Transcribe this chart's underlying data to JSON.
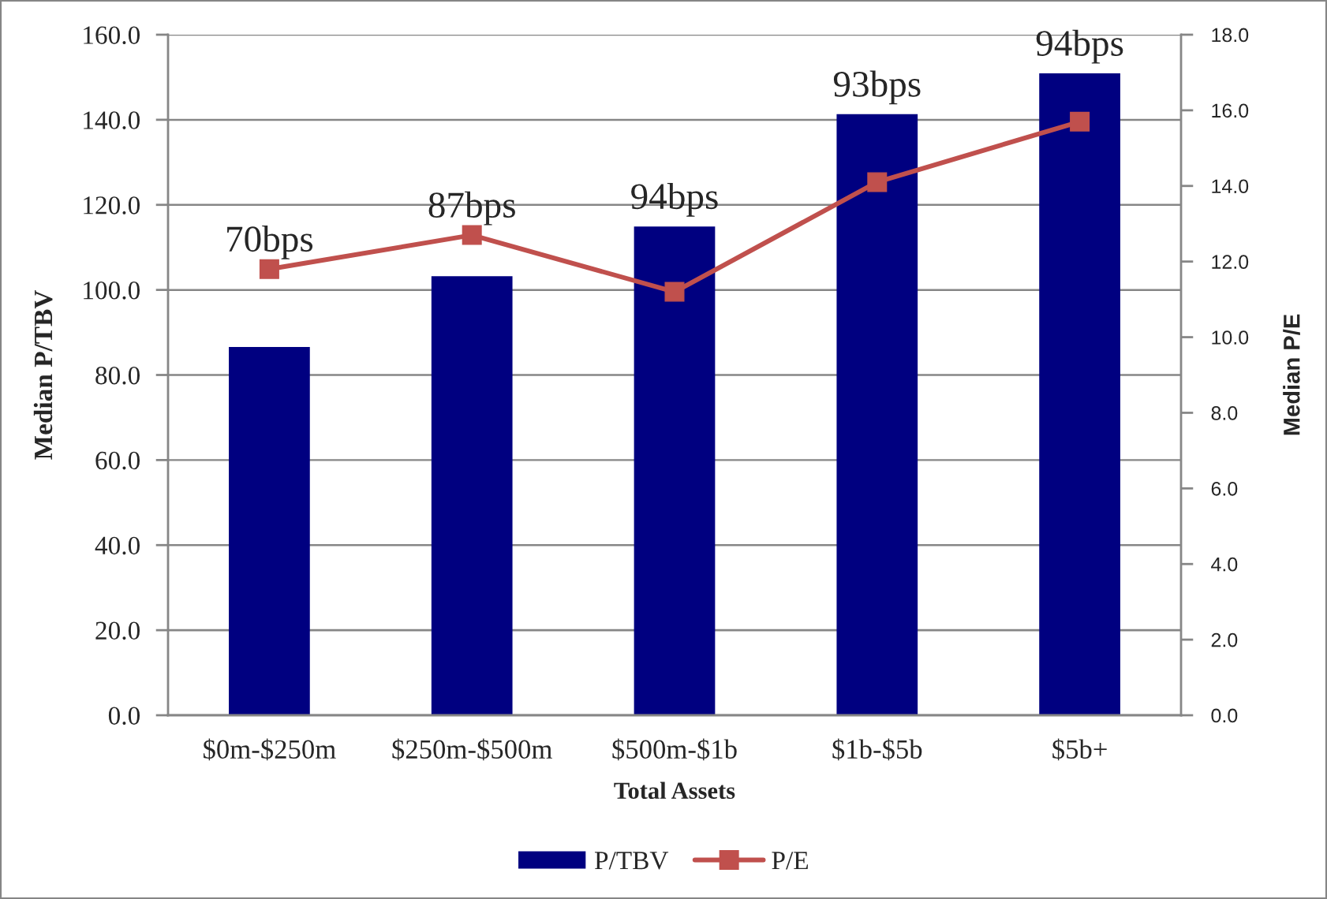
{
  "chart_data": {
    "type": "bar",
    "xlabel": "Total Assets",
    "ylabel": "Median P/TBV",
    "y2label": "Median P/E",
    "categories": [
      "$0m-$250m",
      "$250m-$500m",
      "$500m-$1b",
      "$1b-$5b",
      "$5b+"
    ],
    "series": [
      {
        "name": "P/TBV",
        "color": "#000080",
        "values": [
          86.6,
          103.2,
          114.9,
          141.3,
          150.9
        ]
      },
      {
        "name": "P/E",
        "type": "line",
        "axis": "y2",
        "color": "#c0504d",
        "values": [
          11.8,
          12.7,
          11.2,
          14.1,
          15.7
        ]
      }
    ],
    "ylim": [
      0,
      160
    ],
    "yticks": [
      {
        "value": 0,
        "label": "0.0"
      },
      {
        "value": 20,
        "label": "20.0"
      },
      {
        "value": 40,
        "label": "40.0"
      },
      {
        "value": 60,
        "label": "60.0"
      },
      {
        "value": 80,
        "label": "80.0"
      },
      {
        "value": 100,
        "label": "100.0"
      },
      {
        "value": 120,
        "label": "120.0"
      },
      {
        "value": 140,
        "label": "140.0"
      },
      {
        "value": 160,
        "label": "160.0"
      }
    ],
    "y2lim": [
      0,
      18
    ],
    "y2ticks": [
      {
        "value": 0,
        "label": "0.0"
      },
      {
        "value": 2,
        "label": "2.0"
      },
      {
        "value": 4,
        "label": "4.0"
      },
      {
        "value": 6,
        "label": "6.0"
      },
      {
        "value": 8,
        "label": "8.0"
      },
      {
        "value": 10,
        "label": "10.0"
      },
      {
        "value": 12,
        "label": "12.0"
      },
      {
        "value": 14,
        "label": "14.0"
      },
      {
        "value": 16,
        "label": "16.0"
      },
      {
        "value": 18,
        "label": "18.0"
      }
    ],
    "grid": "y",
    "legend": "bottom",
    "marker": "square",
    "line_style": "solid",
    "annotations": [
      "70bps",
      "87bps",
      "94bps",
      "93bps",
      "94bps"
    ]
  }
}
